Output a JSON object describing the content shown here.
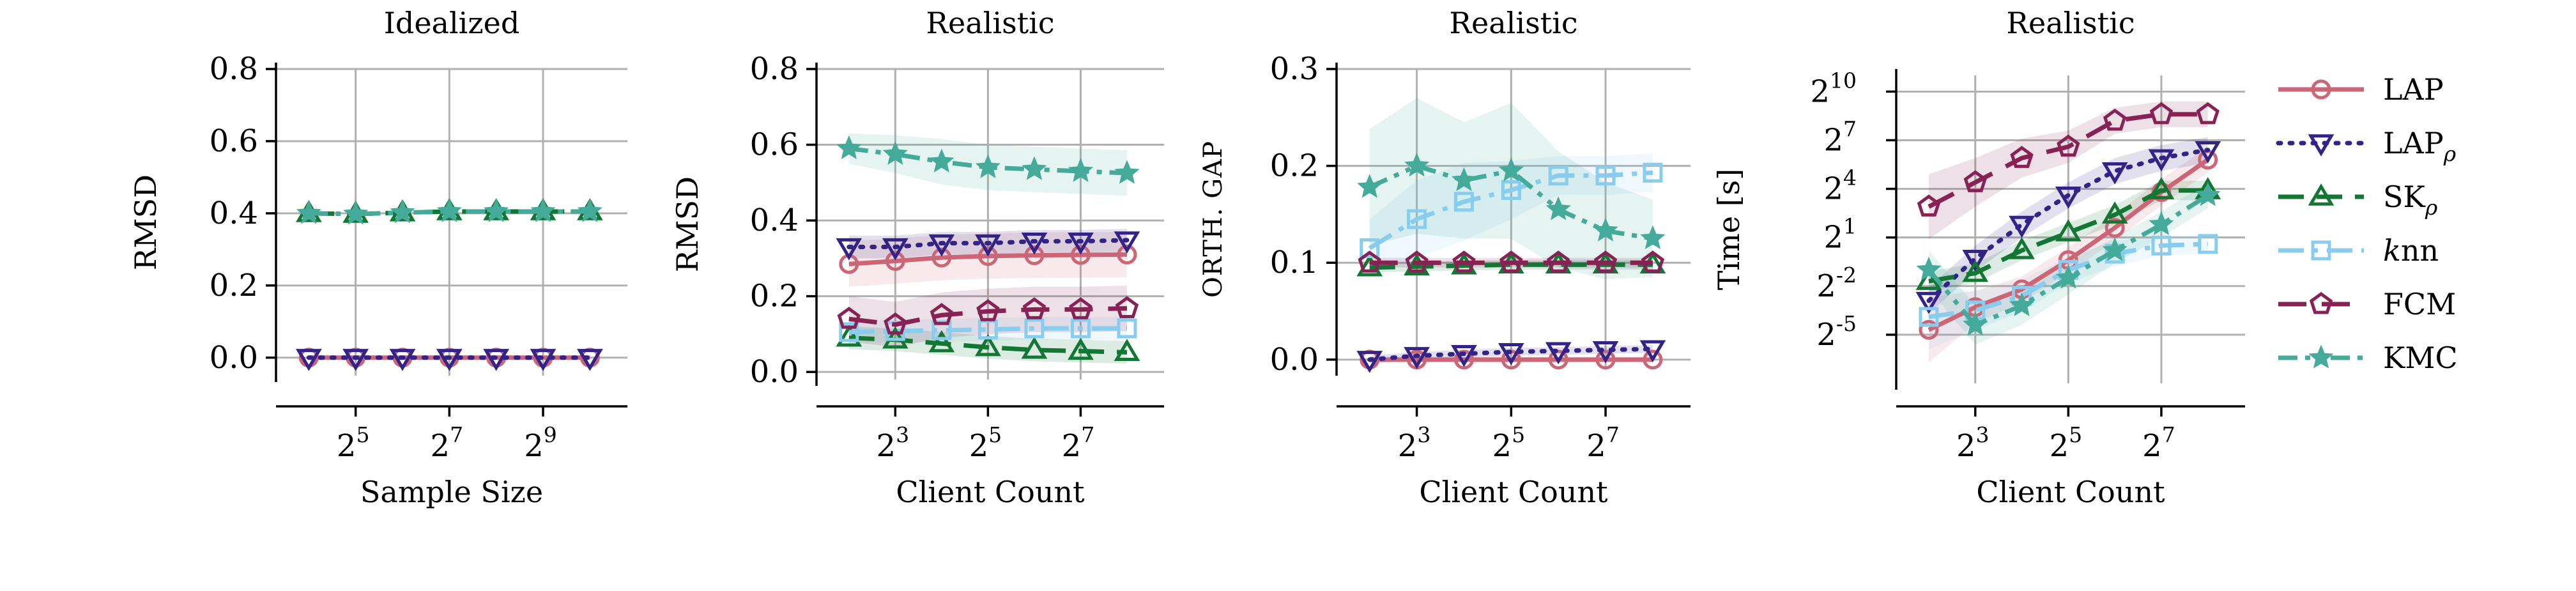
{
  "figure": {
    "colors": {
      "LAP": "#cc6677",
      "LAP_rho": "#332288",
      "SK_rho": "#117733",
      "knn": "#88ccee",
      "FCM": "#882255",
      "KMC": "#44aa99"
    },
    "grid": true
  },
  "legend": {
    "placement": "right",
    "entries": [
      {
        "key": "LAP",
        "label": "LAP",
        "sub": "",
        "italic": false,
        "marker": "circle",
        "dash": "solid"
      },
      {
        "key": "LAP_rho",
        "label": "LAP",
        "sub": "ρ",
        "italic": false,
        "marker": "triangle-down",
        "dash": "dotted"
      },
      {
        "key": "SK_rho",
        "label": "SK",
        "sub": "ρ",
        "italic": false,
        "marker": "triangle-up",
        "dash": "dashed"
      },
      {
        "key": "knn",
        "label": "k",
        "label2": "nn",
        "sub": "",
        "italic": true,
        "marker": "square",
        "dash": "dashdot"
      },
      {
        "key": "FCM",
        "label": "FCM",
        "sub": "",
        "italic": false,
        "marker": "pentagon",
        "dash": "longdash"
      },
      {
        "key": "KMC",
        "label": "KMC",
        "sub": "",
        "italic": false,
        "marker": "star",
        "dash": "dashdotdot"
      }
    ]
  },
  "chart_data": [
    {
      "type": "line",
      "title": "Idealized",
      "xlabel": "Sample Size",
      "ylabel": "RMSD",
      "xscale": "log2",
      "xlim_log2": [
        3.3,
        10.8
      ],
      "xticks_exp": [
        5,
        7,
        9
      ],
      "ylim": [
        -0.05,
        0.8
      ],
      "yticks": [
        0.0,
        0.2,
        0.4,
        0.6,
        0.8
      ],
      "ytick_labels": [
        "0.0",
        "0.2",
        "0.4",
        "0.6",
        "0.8"
      ],
      "x_log2": [
        4,
        5,
        6,
        7,
        8,
        9,
        10
      ],
      "series": [
        {
          "key": "LAP",
          "values": [
            0.0,
            0.0,
            0.0,
            0.0,
            0.0,
            0.0,
            0.0
          ]
        },
        {
          "key": "LAP_rho",
          "values": [
            0.0,
            0.0,
            0.0,
            0.0,
            0.0,
            0.0,
            0.0
          ]
        },
        {
          "key": "SK_rho",
          "values": [
            0.4,
            0.398,
            0.402,
            0.405,
            0.405,
            0.405,
            0.405
          ]
        },
        {
          "key": "KMC",
          "values": [
            0.4,
            0.398,
            0.402,
            0.405,
            0.405,
            0.405,
            0.405
          ]
        }
      ]
    },
    {
      "type": "line",
      "title": "Realistic",
      "xlabel": "Client Count",
      "ylabel": "RMSD",
      "xscale": "log2",
      "xlim_log2": [
        1.3,
        8.8
      ],
      "xticks_exp": [
        3,
        5,
        7
      ],
      "ylim": [
        -0.02,
        0.8
      ],
      "yticks": [
        0.0,
        0.2,
        0.4,
        0.6,
        0.8
      ],
      "ytick_labels": [
        "0.0",
        "0.2",
        "0.4",
        "0.6",
        "0.8"
      ],
      "x_log2": [
        2,
        3,
        4,
        5,
        6,
        7,
        8
      ],
      "series": [
        {
          "key": "LAP",
          "values": [
            0.285,
            0.293,
            0.302,
            0.306,
            0.308,
            0.309,
            0.31
          ],
          "band": [
            0.06,
            0.06,
            0.06,
            0.06,
            0.06,
            0.06,
            0.06
          ]
        },
        {
          "key": "LAP_rho",
          "values": [
            0.33,
            0.33,
            0.34,
            0.34,
            0.345,
            0.345,
            0.348
          ],
          "band": [
            0.03,
            0.03,
            0.03,
            0.03,
            0.03,
            0.03,
            0.03
          ]
        },
        {
          "key": "SK_rho",
          "values": [
            0.09,
            0.085,
            0.075,
            0.065,
            0.058,
            0.055,
            0.052
          ],
          "band": [
            0.03,
            0.03,
            0.03,
            0.03,
            0.03,
            0.03,
            0.03
          ]
        },
        {
          "key": "knn",
          "values": [
            0.105,
            0.108,
            0.11,
            0.112,
            0.115,
            0.115,
            0.115
          ],
          "band": [
            0.03,
            0.03,
            0.03,
            0.03,
            0.03,
            0.03,
            0.03
          ]
        },
        {
          "key": "FCM",
          "values": [
            0.14,
            0.125,
            0.15,
            0.16,
            0.165,
            0.165,
            0.168
          ],
          "band": [
            0.06,
            0.06,
            0.06,
            0.06,
            0.06,
            0.06,
            0.06
          ]
        },
        {
          "key": "KMC",
          "values": [
            0.59,
            0.575,
            0.555,
            0.54,
            0.535,
            0.53,
            0.525
          ],
          "band": [
            0.04,
            0.05,
            0.06,
            0.06,
            0.06,
            0.06,
            0.06
          ]
        }
      ]
    },
    {
      "type": "line",
      "title": "Realistic",
      "xlabel": "Client Count",
      "ylabel": "ORTH. GAP",
      "xscale": "log2",
      "xlim_log2": [
        1.3,
        8.8
      ],
      "xticks_exp": [
        3,
        5,
        7
      ],
      "ylim": [
        -0.01,
        0.3
      ],
      "yticks": [
        0.0,
        0.1,
        0.2,
        0.3
      ],
      "ytick_labels": [
        "0.0",
        "0.1",
        "0.2",
        "0.3"
      ],
      "x_log2": [
        2,
        3,
        4,
        5,
        6,
        7,
        8
      ],
      "series": [
        {
          "key": "LAP",
          "values": [
            0.0,
            0.0,
            0.0,
            0.0,
            0.0,
            0.0,
            0.0
          ],
          "band": [
            0.003,
            0.003,
            0.003,
            0.003,
            0.003,
            0.003,
            0.003
          ]
        },
        {
          "key": "LAP_rho",
          "values": [
            0.0,
            0.004,
            0.006,
            0.008,
            0.009,
            0.01,
            0.011
          ],
          "band": [
            0.004,
            0.004,
            0.004,
            0.004,
            0.004,
            0.004,
            0.004
          ]
        },
        {
          "key": "SK_rho",
          "values": [
            0.095,
            0.096,
            0.097,
            0.098,
            0.098,
            0.098,
            0.098
          ],
          "band": [
            0.005,
            0.005,
            0.005,
            0.005,
            0.005,
            0.005,
            0.005
          ]
        },
        {
          "key": "knn",
          "values": [
            0.115,
            0.145,
            0.163,
            0.175,
            0.19,
            0.19,
            0.193
          ],
          "band": [
            0.03,
            0.04,
            0.04,
            0.03,
            0.02,
            0.02,
            0.02
          ]
        },
        {
          "key": "FCM",
          "values": [
            0.1,
            0.1,
            0.1,
            0.1,
            0.1,
            0.1,
            0.1
          ],
          "band": [
            0.005,
            0.005,
            0.005,
            0.005,
            0.005,
            0.005,
            0.005
          ]
        },
        {
          "key": "KMC",
          "values": [
            0.178,
            0.2,
            0.185,
            0.195,
            0.155,
            0.133,
            0.125
          ],
          "band": [
            0.06,
            0.07,
            0.06,
            0.07,
            0.06,
            0.05,
            0.04
          ]
        }
      ]
    },
    {
      "type": "line",
      "title": "Realistic",
      "xlabel": "Client Count",
      "ylabel": "Time [s]",
      "xscale": "log2",
      "yscale": "log2",
      "xlim_log2": [
        1.3,
        8.8
      ],
      "xticks_exp": [
        3,
        5,
        7
      ],
      "ylim_log2": [
        -8,
        11
      ],
      "yticks_exp": [
        -5,
        -2,
        1,
        4,
        7,
        10
      ],
      "x_log2": [
        2,
        3,
        4,
        5,
        6,
        7,
        8
      ],
      "series": [
        {
          "key": "LAP",
          "values_log2": [
            -4.7,
            -3.3,
            -2.2,
            -0.4,
            1.6,
            3.8,
            5.8
          ],
          "band": [
            2.0,
            1.0,
            0.8,
            0.8,
            0.8,
            0.8,
            0.8
          ]
        },
        {
          "key": "LAP_rho",
          "values_log2": [
            -2.9,
            -0.3,
            1.8,
            3.6,
            5.1,
            5.9,
            6.4
          ],
          "band": [
            0.8,
            0.8,
            0.8,
            0.8,
            0.8,
            0.8,
            0.8
          ]
        },
        {
          "key": "SK_rho",
          "values_log2": [
            -1.7,
            -1.2,
            0.2,
            1.3,
            2.4,
            3.9,
            3.9
          ],
          "band": [
            0.6,
            0.6,
            0.6,
            0.6,
            0.6,
            0.6,
            0.6
          ]
        },
        {
          "key": "knn",
          "values_log2": [
            -3.9,
            -3.5,
            -2.6,
            -1.0,
            0.0,
            0.5,
            0.6
          ],
          "band": [
            2.0,
            1.2,
            1.0,
            0.8,
            0.8,
            0.6,
            0.6
          ]
        },
        {
          "key": "FCM",
          "values_log2": [
            2.9,
            4.4,
            5.9,
            6.6,
            8.2,
            8.6,
            8.6
          ],
          "band": [
            2.0,
            1.5,
            1.2,
            1.0,
            0.8,
            0.8,
            0.8
          ]
        },
        {
          "key": "KMC",
          "values_log2": [
            -1.0,
            -4.4,
            -3.2,
            -1.5,
            0.2,
            1.8,
            3.6
          ],
          "band": [
            1.2,
            1.2,
            1.2,
            1.0,
            0.8,
            0.8,
            0.8
          ]
        }
      ]
    }
  ]
}
